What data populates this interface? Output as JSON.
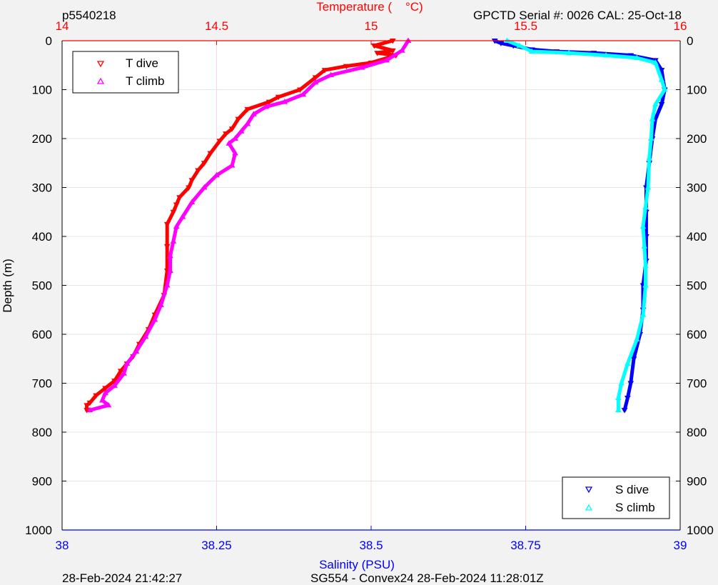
{
  "header": {
    "left_label": "p5540218",
    "right_label": "GPCTD Serial #: 0026 CAL: 25-Oct-18"
  },
  "footer": {
    "left_label": "28-Feb-2024 21:42:27",
    "center_label": "SG554 - Convex24 28-Feb-2024 11:28:01Z"
  },
  "colors": {
    "plot_bg": "#ffffff",
    "figure_bg": "#f2f2f2",
    "temperature_axis": "#ff0000",
    "salinity_axis": "#0000ff",
    "t_dive": "#ff0000",
    "t_climb": "#ff00ff",
    "s_dive": "#0000ff",
    "s_climb": "#00ffff",
    "grid": "#e6e6e6",
    "temp_grid": "#ffd6d6"
  },
  "chart_data": {
    "type": "line",
    "title": "",
    "ylabel": "Depth (m)",
    "ylim": [
      0,
      1000
    ],
    "y_reversed": true,
    "yticks": [
      "0",
      "100",
      "200",
      "300",
      "400",
      "500",
      "600",
      "700",
      "800",
      "900",
      "1000"
    ],
    "temperature_axis": {
      "label": "Temperature (    °C)",
      "position": "top",
      "range": [
        14,
        16
      ],
      "ticks": [
        "14",
        "14.5",
        "15",
        "15.5",
        "16"
      ]
    },
    "salinity_axis": {
      "label": "Salinity (PSU)",
      "position": "bottom",
      "range": [
        38,
        39
      ],
      "ticks": [
        "38",
        "38.25",
        "38.5",
        "38.75",
        "39"
      ]
    },
    "grid": true,
    "legend_temperature": {
      "placement": "top-left",
      "entries": [
        "T dive",
        "T climb"
      ]
    },
    "legend_salinity": {
      "placement": "bottom-right",
      "entries": [
        "S dive",
        "S climb"
      ]
    },
    "series": [
      {
        "name": "T dive",
        "axis": "temperature",
        "marker": "triangle-down",
        "points": [
          [
            15.07,
            0
          ],
          [
            15.01,
            10
          ],
          [
            15.07,
            20
          ],
          [
            15.02,
            25
          ],
          [
            15.08,
            30
          ],
          [
            15.0,
            45
          ],
          [
            14.92,
            52
          ],
          [
            14.85,
            60
          ],
          [
            14.82,
            75
          ],
          [
            14.77,
            100
          ],
          [
            14.7,
            115
          ],
          [
            14.67,
            125
          ],
          [
            14.6,
            140
          ],
          [
            14.57,
            160
          ],
          [
            14.55,
            180
          ],
          [
            14.53,
            190
          ],
          [
            14.51,
            205
          ],
          [
            14.48,
            230
          ],
          [
            14.46,
            250
          ],
          [
            14.44,
            265
          ],
          [
            14.42,
            285
          ],
          [
            14.41,
            300
          ],
          [
            14.38,
            320
          ],
          [
            14.37,
            335
          ],
          [
            14.36,
            350
          ],
          [
            14.34,
            375
          ],
          [
            14.34,
            420
          ],
          [
            14.34,
            470
          ],
          [
            14.33,
            520
          ],
          [
            14.3,
            560
          ],
          [
            14.28,
            590
          ],
          [
            14.25,
            620
          ],
          [
            14.23,
            645
          ],
          [
            14.21,
            660
          ],
          [
            14.19,
            675
          ],
          [
            14.17,
            695
          ],
          [
            14.14,
            710
          ],
          [
            14.11,
            725
          ],
          [
            14.09,
            740
          ],
          [
            14.08,
            745
          ],
          [
            14.08,
            755
          ]
        ]
      },
      {
        "name": "T climb",
        "axis": "temperature",
        "marker": "triangle-up",
        "points": [
          [
            15.12,
            0
          ],
          [
            15.1,
            20
          ],
          [
            15.05,
            40
          ],
          [
            14.97,
            55
          ],
          [
            14.87,
            70
          ],
          [
            14.82,
            85
          ],
          [
            14.78,
            110
          ],
          [
            14.72,
            125
          ],
          [
            14.66,
            135
          ],
          [
            14.62,
            150
          ],
          [
            14.6,
            170
          ],
          [
            14.58,
            185
          ],
          [
            14.56,
            200
          ],
          [
            14.54,
            210
          ],
          [
            14.56,
            230
          ],
          [
            14.55,
            255
          ],
          [
            14.5,
            275
          ],
          [
            14.46,
            300
          ],
          [
            14.42,
            330
          ],
          [
            14.39,
            360
          ],
          [
            14.37,
            380
          ],
          [
            14.36,
            410
          ],
          [
            14.35,
            440
          ],
          [
            14.35,
            470
          ],
          [
            14.34,
            500
          ],
          [
            14.32,
            540
          ],
          [
            14.3,
            570
          ],
          [
            14.27,
            605
          ],
          [
            14.24,
            635
          ],
          [
            14.21,
            660
          ],
          [
            14.2,
            680
          ],
          [
            14.17,
            705
          ],
          [
            14.14,
            720
          ],
          [
            14.13,
            735
          ],
          [
            14.15,
            745
          ],
          [
            14.09,
            755
          ]
        ]
      },
      {
        "name": "S dive",
        "axis": "salinity",
        "marker": "triangle-down",
        "points": [
          [
            38.7,
            0
          ],
          [
            38.71,
            5
          ],
          [
            38.73,
            10
          ],
          [
            38.76,
            18
          ],
          [
            38.8,
            22
          ],
          [
            38.86,
            25
          ],
          [
            38.92,
            30
          ],
          [
            38.96,
            40
          ],
          [
            38.97,
            60
          ],
          [
            38.975,
            100
          ],
          [
            38.97,
            130
          ],
          [
            38.96,
            160
          ],
          [
            38.955,
            200
          ],
          [
            38.95,
            250
          ],
          [
            38.945,
            300
          ],
          [
            38.945,
            350
          ],
          [
            38.945,
            400
          ],
          [
            38.945,
            450
          ],
          [
            38.94,
            500
          ],
          [
            38.94,
            550
          ],
          [
            38.935,
            600
          ],
          [
            38.925,
            650
          ],
          [
            38.92,
            700
          ],
          [
            38.915,
            730
          ],
          [
            38.91,
            755
          ]
        ]
      },
      {
        "name": "S climb",
        "axis": "salinity",
        "marker": "triangle-up",
        "points": [
          [
            38.72,
            0
          ],
          [
            38.74,
            10
          ],
          [
            38.76,
            22
          ],
          [
            38.82,
            25
          ],
          [
            38.88,
            30
          ],
          [
            38.93,
            35
          ],
          [
            38.96,
            45
          ],
          [
            38.97,
            80
          ],
          [
            38.975,
            100
          ],
          [
            38.96,
            130
          ],
          [
            38.955,
            160
          ],
          [
            38.953,
            200
          ],
          [
            38.95,
            240
          ],
          [
            38.948,
            300
          ],
          [
            38.944,
            340
          ],
          [
            38.94,
            380
          ],
          [
            38.942,
            420
          ],
          [
            38.944,
            460
          ],
          [
            38.944,
            500
          ],
          [
            38.94,
            560
          ],
          [
            38.93,
            610
          ],
          [
            38.915,
            660
          ],
          [
            38.905,
            700
          ],
          [
            38.9,
            730
          ],
          [
            38.9,
            755
          ]
        ]
      }
    ]
  }
}
